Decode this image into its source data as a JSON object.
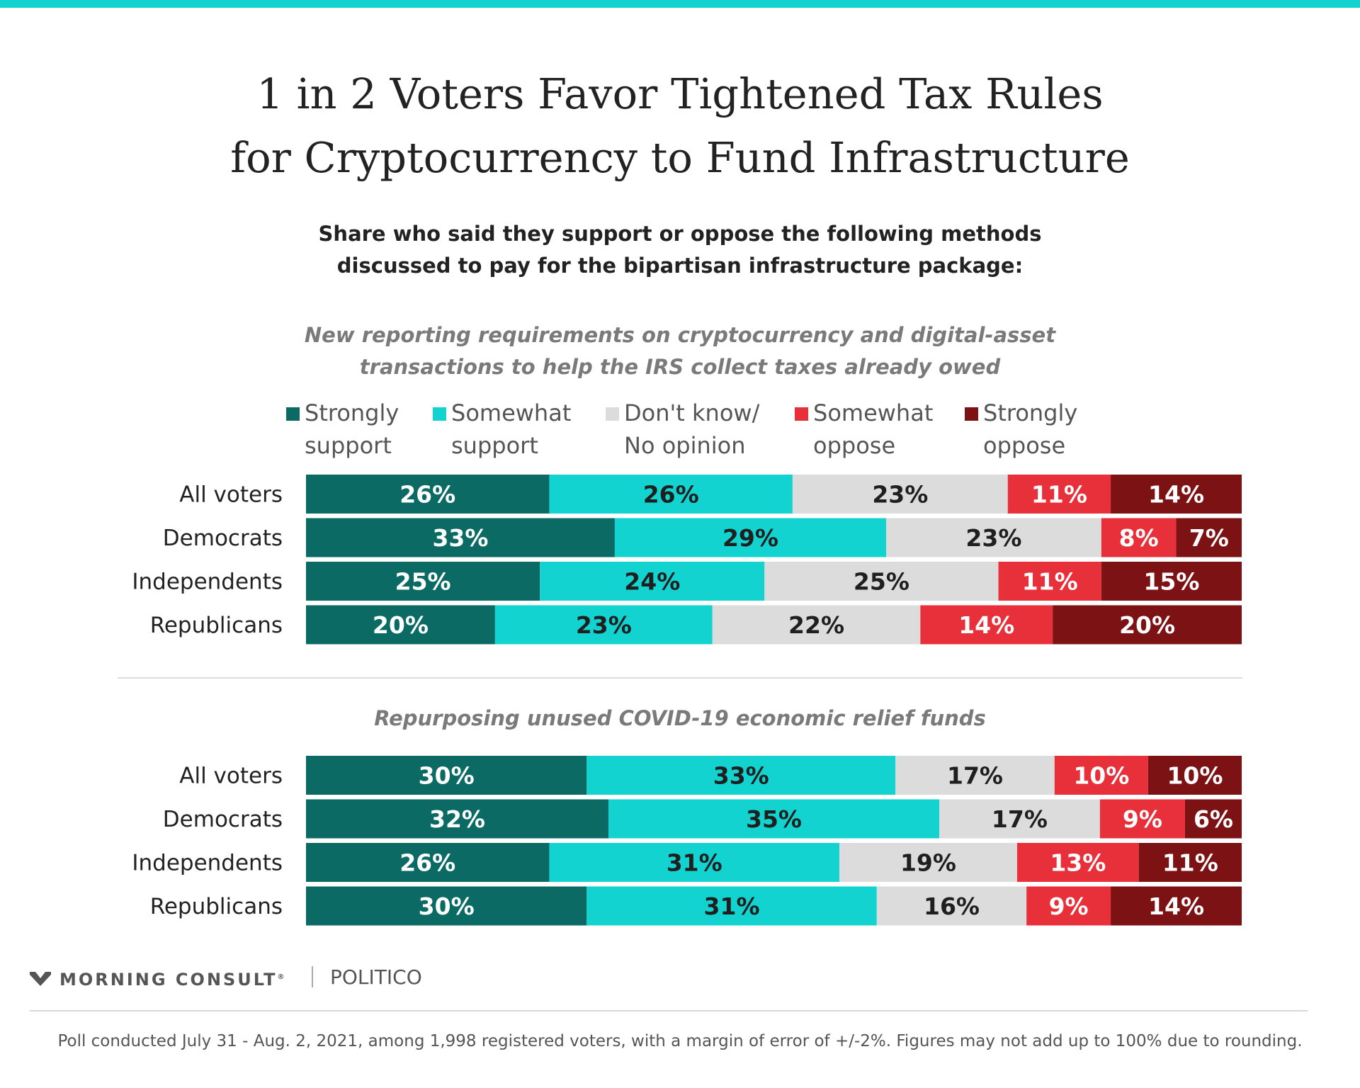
{
  "title": {
    "line1": "1 in 2 Voters Favor Tightened Tax Rules",
    "line2": "for Cryptocurrency to Fund Infrastructure"
  },
  "subtitle": {
    "line1": "Share who said they support or oppose the following methods",
    "line2": "discussed to pay for the bipartisan infrastructure package:"
  },
  "legend": [
    {
      "line1": "Strongly",
      "line2": "support",
      "color": "#0b6b64"
    },
    {
      "line1": "Somewhat",
      "line2": "support",
      "color": "#12d3cf"
    },
    {
      "line1": "Don't know/",
      "line2": "No opinion",
      "color": "#dcdcdc"
    },
    {
      "line1": "Somewhat",
      "line2": "oppose",
      "color": "#e8303a"
    },
    {
      "line1": "Strongly",
      "line2": "oppose",
      "color": "#7d1215"
    }
  ],
  "chart_data": [
    {
      "type": "bar",
      "orientation": "horizontal",
      "stacked": true,
      "title_line1": "New reporting requirements on cryptocurrency and digital-asset",
      "title_line2": "transactions to help the IRS collect taxes already owed",
      "categories": [
        "All voters",
        "Democrats",
        "Independents",
        "Republicans"
      ],
      "series": [
        {
          "name": "Strongly support",
          "values": [
            26,
            33,
            25,
            20
          ]
        },
        {
          "name": "Somewhat support",
          "values": [
            26,
            29,
            24,
            23
          ]
        },
        {
          "name": "Don't know/ No opinion",
          "values": [
            23,
            23,
            25,
            22
          ]
        },
        {
          "name": "Somewhat oppose",
          "values": [
            11,
            8,
            11,
            14
          ]
        },
        {
          "name": "Strongly oppose",
          "values": [
            14,
            7,
            15,
            20
          ]
        }
      ],
      "unit": "%"
    },
    {
      "type": "bar",
      "orientation": "horizontal",
      "stacked": true,
      "title_line1": "Repurposing unused COVID-19 economic relief funds",
      "title_line2": "",
      "categories": [
        "All voters",
        "Democrats",
        "Independents",
        "Republicans"
      ],
      "series": [
        {
          "name": "Strongly support",
          "values": [
            30,
            32,
            26,
            30
          ]
        },
        {
          "name": "Somewhat support",
          "values": [
            33,
            35,
            31,
            31
          ]
        },
        {
          "name": "Don't know/ No opinion",
          "values": [
            17,
            17,
            19,
            16
          ]
        },
        {
          "name": "Somewhat oppose",
          "values": [
            10,
            9,
            13,
            9
          ]
        },
        {
          "name": "Strongly oppose",
          "values": [
            10,
            6,
            11,
            14
          ]
        }
      ],
      "unit": "%"
    }
  ],
  "label_colors": [
    "#ffffff",
    "#1f1f1f",
    "#1f1f1f",
    "#ffffff",
    "#ffffff"
  ],
  "branding": {
    "morning_consult": "MORNING CONSULT",
    "trademark": "®",
    "politico": "POLITICO"
  },
  "footnote": "Poll conducted July 31 - Aug.  2, 2021, among 1,998 registered voters, with a margin of error of +/-2%. Figures may not add up to 100% due to rounding."
}
